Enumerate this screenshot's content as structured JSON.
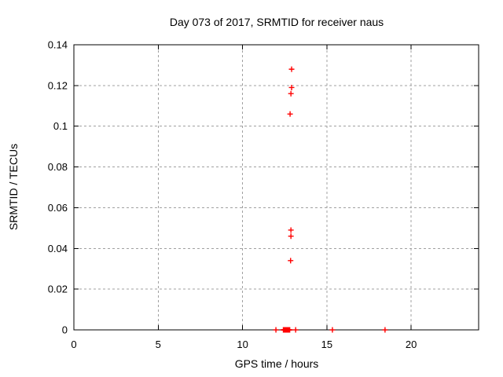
{
  "chart_data": {
    "type": "scatter",
    "title": "Day 073 of 2017, SRMTID for receiver naus",
    "xlabel": "GPS time / hours",
    "ylabel": "SRMTID / TECUs",
    "xlim": [
      0,
      24
    ],
    "ylim": [
      0,
      0.14
    ],
    "x_ticks": [
      0,
      5,
      10,
      15,
      20
    ],
    "y_ticks": [
      0,
      0.02,
      0.04,
      0.06,
      0.08,
      0.1,
      0.12,
      0.14
    ],
    "grid": true,
    "legend_position": "none",
    "marker": "plus",
    "colors": {
      "marker": "#ff0000",
      "grid": "#a0a0a0",
      "axis": "#000000"
    },
    "series": [
      {
        "name": "SRMTID",
        "points": [
          [
            12.91,
            0.128
          ],
          [
            12.91,
            0.119
          ],
          [
            12.87,
            0.116
          ],
          [
            12.82,
            0.106
          ],
          [
            12.87,
            0.049
          ],
          [
            12.87,
            0.046
          ],
          [
            12.85,
            0.034
          ],
          [
            11.98,
            0
          ],
          [
            12.42,
            0
          ],
          [
            12.44,
            0
          ],
          [
            12.46,
            0
          ],
          [
            12.48,
            0
          ],
          [
            12.5,
            0
          ],
          [
            12.52,
            0
          ],
          [
            12.54,
            0
          ],
          [
            12.56,
            0
          ],
          [
            12.58,
            0
          ],
          [
            12.6,
            0
          ],
          [
            12.62,
            0
          ],
          [
            12.64,
            0
          ],
          [
            12.66,
            0
          ],
          [
            12.68,
            0
          ],
          [
            12.7,
            0
          ],
          [
            12.72,
            0
          ],
          [
            12.74,
            0
          ],
          [
            12.76,
            0
          ],
          [
            12.78,
            0
          ],
          [
            12.8,
            0
          ],
          [
            13.15,
            0
          ],
          [
            15.33,
            0
          ],
          [
            18.45,
            0
          ]
        ]
      }
    ]
  }
}
